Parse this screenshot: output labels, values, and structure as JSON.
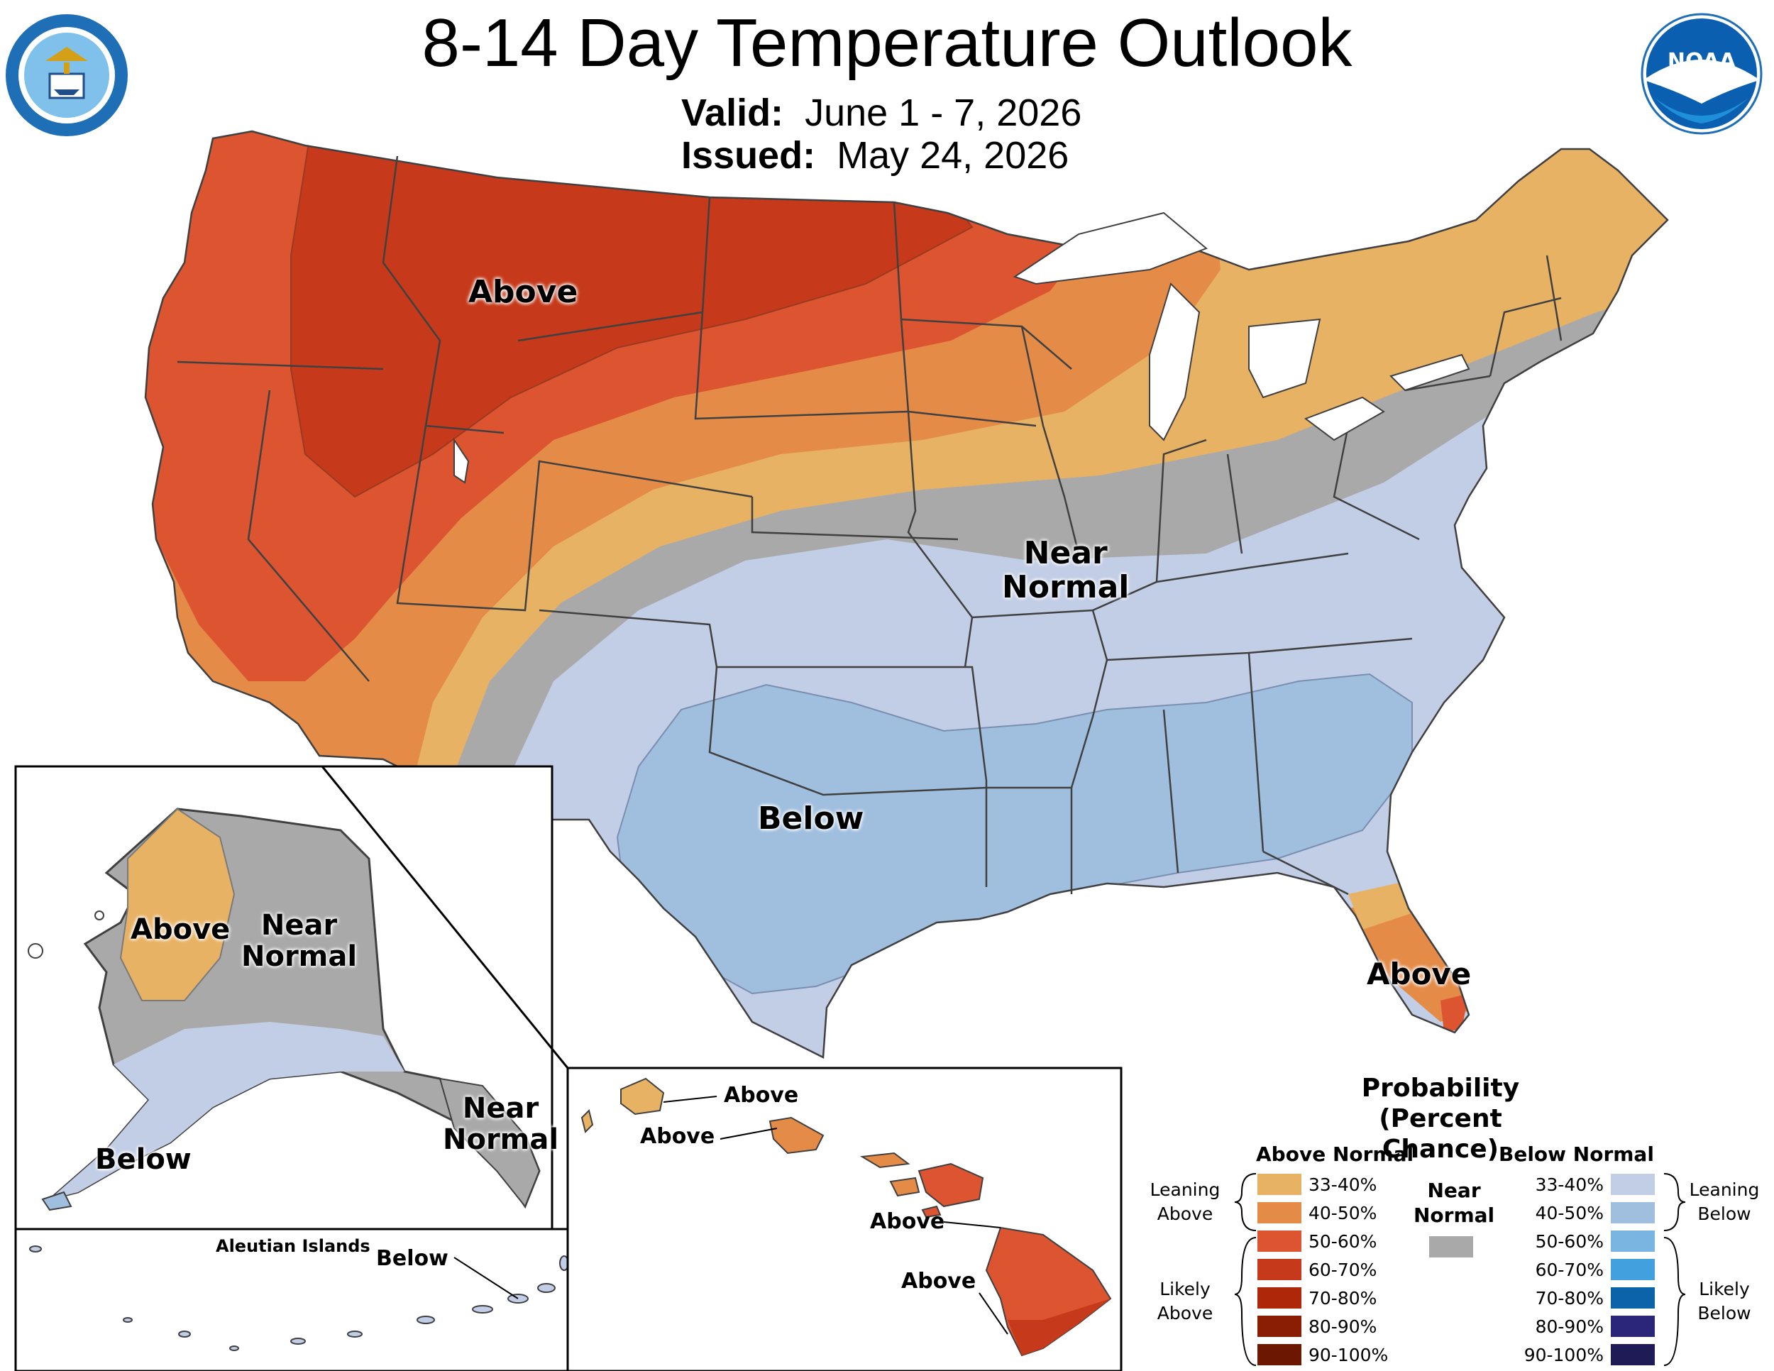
{
  "title": "8-14 Day Temperature Outlook",
  "valid": {
    "label": "Valid:",
    "value": "June 1 - 7, 2026"
  },
  "issued": {
    "label": "Issued:",
    "value": "May 24, 2026"
  },
  "emblems": {
    "commerce_seal": "commerce-seal-icon",
    "noaa_logo_text": "NOAA"
  },
  "map_labels": {
    "conus_above": "Above",
    "conus_near_1": "Near",
    "conus_near_2": "Normal",
    "conus_below": "Below",
    "florida_above": "Above",
    "ak_above": "Above",
    "ak_near_1": "Near",
    "ak_near_2": "Normal",
    "ak_below": "Below",
    "ak_se_near_1": "Near",
    "ak_se_near_2": "Normal",
    "aleutian_title": "Aleutian Islands",
    "aleutian_below": "Below",
    "hi_kauai": "Above",
    "hi_oahu": "Above",
    "hi_maui": "Above",
    "hi_big_island": "Above"
  },
  "legend": {
    "title_1": "Probability",
    "title_2": "(Percent Chance)",
    "above_head": "Above Normal",
    "near_head_1": "Near",
    "near_head_2": "Normal",
    "below_head": "Below Normal",
    "leaning_above_1": "Leaning",
    "leaning_above_2": "Above",
    "likely_above_1": "Likely",
    "likely_above_2": "Above",
    "leaning_below_1": "Leaning",
    "leaning_below_2": "Below",
    "likely_below_1": "Likely",
    "likely_below_2": "Below",
    "above_rows": [
      {
        "label": "33-40%",
        "color": "#e8b265"
      },
      {
        "label": "40-50%",
        "color": "#e48b48"
      },
      {
        "label": "50-60%",
        "color": "#dc5430"
      },
      {
        "label": "60-70%",
        "color": "#c63a1b"
      },
      {
        "label": "70-80%",
        "color": "#ad2708"
      },
      {
        "label": "80-90%",
        "color": "#8a1e02"
      },
      {
        "label": "90-100%",
        "color": "#6b1701"
      }
    ],
    "near_color": "#a9a9a9",
    "below_rows": [
      {
        "label": "33-40%",
        "color": "#c2cde6"
      },
      {
        "label": "40-50%",
        "color": "#a0bfdf"
      },
      {
        "label": "50-60%",
        "color": "#7ab5e2"
      },
      {
        "label": "60-70%",
        "color": "#41a0dd"
      },
      {
        "label": "70-80%",
        "color": "#0b63a8"
      },
      {
        "label": "80-90%",
        "color": "#2c2678"
      },
      {
        "label": "90-100%",
        "color": "#1e1b56"
      }
    ]
  },
  "colors": {
    "above_33_40": "#e8b265",
    "above_40_50": "#e48b48",
    "above_50_60": "#dc5430",
    "above_60_70": "#c63a1b",
    "near_normal": "#a9a9a9",
    "below_33_40": "#c2cde6",
    "below_40_50": "#a0bfdf",
    "lakes": "#ffffff",
    "borders": "#404040"
  }
}
